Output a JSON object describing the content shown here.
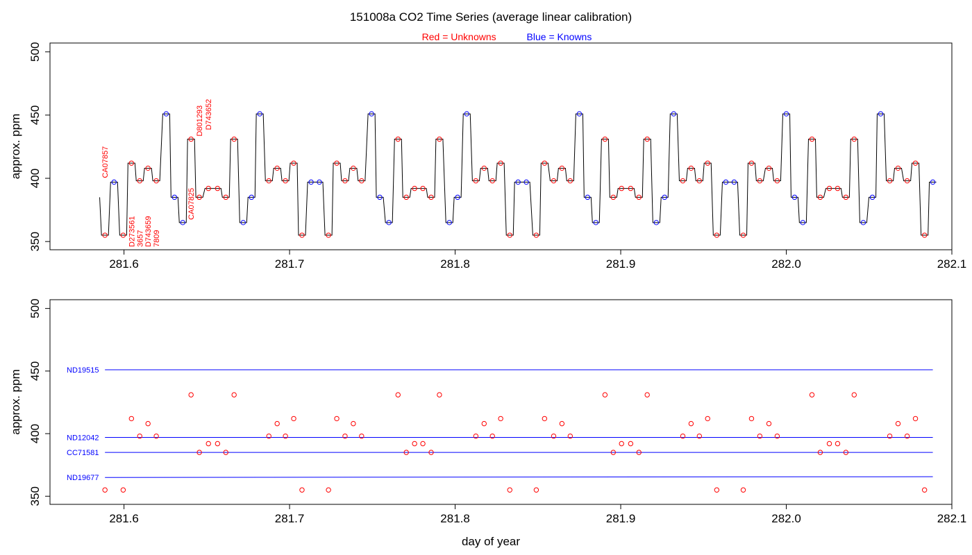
{
  "title": "151008a   CO2 Time Series (average linear calibration)",
  "legend": {
    "red_word": "Red",
    "red_rest": " = Unknowns",
    "blue_word": "Blue",
    "blue_rest": " = Knowns"
  },
  "colors": {
    "unknown": "#ff0000",
    "known": "#0000ff",
    "trace": "#000000",
    "frame": "#000000"
  },
  "xlabel": "day of year",
  "chart_data": [
    {
      "type": "line",
      "panel": "top",
      "ylabel": "approx. ppm",
      "xlim": [
        281.5553,
        282.1
      ],
      "ylim": [
        343.5,
        507
      ],
      "x_ticks": [
        "281.6",
        "281.7",
        "281.8",
        "281.9",
        "282.0",
        "282.1"
      ],
      "y_ticks": [
        "350",
        "400",
        "450",
        "500"
      ],
      "series": [
        {
          "name": "Unknowns",
          "color": "#ff0000",
          "points": [
            [
              281.5885,
              355
            ],
            [
              281.5995,
              355
            ],
            [
              281.6045,
              412
            ],
            [
              281.6095,
              398
            ],
            [
              281.6145,
              408
            ],
            [
              281.6195,
              398
            ],
            [
              281.6405,
              431
            ],
            [
              281.6455,
              385
            ],
            [
              281.651,
              392
            ],
            [
              281.6565,
              392
            ],
            [
              281.6615,
              385
            ],
            [
              281.6665,
              431
            ],
            [
              281.6875,
              398
            ],
            [
              281.6925,
              408
            ],
            [
              281.6975,
              398
            ],
            [
              281.7025,
              412
            ],
            [
              281.7075,
              355
            ],
            [
              281.7235,
              355
            ],
            [
              281.7285,
              412
            ],
            [
              281.7335,
              398
            ],
            [
              281.7385,
              408
            ],
            [
              281.7435,
              398
            ],
            [
              281.7655,
              431
            ],
            [
              281.7705,
              385
            ],
            [
              281.7755,
              392
            ],
            [
              281.7805,
              392
            ],
            [
              281.7855,
              385
            ],
            [
              281.7905,
              431
            ],
            [
              281.8125,
              398
            ],
            [
              281.8175,
              408
            ],
            [
              281.8225,
              398
            ],
            [
              281.8275,
              412
            ],
            [
              281.833,
              355
            ],
            [
              281.849,
              355
            ],
            [
              281.854,
              412
            ],
            [
              281.8595,
              398
            ],
            [
              281.8645,
              408
            ],
            [
              281.8695,
              398
            ],
            [
              281.8905,
              431
            ],
            [
              281.8955,
              385
            ],
            [
              281.9005,
              392
            ],
            [
              281.906,
              392
            ],
            [
              281.911,
              385
            ],
            [
              281.916,
              431
            ],
            [
              281.9375,
              398
            ],
            [
              281.9425,
              408
            ],
            [
              281.9475,
              398
            ],
            [
              281.9525,
              412
            ],
            [
              281.958,
              355
            ],
            [
              281.974,
              355
            ],
            [
              281.979,
              412
            ],
            [
              281.984,
              398
            ],
            [
              281.9895,
              408
            ],
            [
              281.9945,
              398
            ],
            [
              282.0155,
              431
            ],
            [
              282.0205,
              385
            ],
            [
              282.026,
              392
            ],
            [
              282.031,
              392
            ],
            [
              282.036,
              385
            ],
            [
              282.041,
              431
            ],
            [
              282.0625,
              398
            ],
            [
              282.0675,
              408
            ],
            [
              282.073,
              398
            ],
            [
              282.078,
              412
            ],
            [
              282.0835,
              355
            ]
          ]
        },
        {
          "name": "Knowns",
          "color": "#0000ff",
          "points": [
            [
              281.594,
              397
            ],
            [
              281.6255,
              451
            ],
            [
              281.6305,
              385
            ],
            [
              281.6355,
              365
            ],
            [
              281.672,
              365
            ],
            [
              281.677,
              385
            ],
            [
              281.682,
              451
            ],
            [
              281.713,
              397
            ],
            [
              281.718,
              397
            ],
            [
              281.7495,
              451
            ],
            [
              281.7545,
              385
            ],
            [
              281.76,
              365
            ],
            [
              281.7965,
              365
            ],
            [
              281.8015,
              385
            ],
            [
              281.807,
              451
            ],
            [
              281.838,
              397
            ],
            [
              281.843,
              397
            ],
            [
              281.875,
              451
            ],
            [
              281.88,
              385
            ],
            [
              281.885,
              365
            ],
            [
              281.9215,
              365
            ],
            [
              281.9265,
              385
            ],
            [
              281.932,
              451
            ],
            [
              281.9635,
              397
            ],
            [
              281.9685,
              397
            ],
            [
              282.0,
              451
            ],
            [
              282.005,
              385
            ],
            [
              282.01,
              365
            ],
            [
              282.0465,
              365
            ],
            [
              282.052,
              385
            ],
            [
              282.057,
              451
            ],
            [
              282.0885,
              397
            ]
          ]
        }
      ],
      "annotations": [
        {
          "text": "CA07857",
          "x": 281.5885,
          "y": 398,
          "anchor": "start",
          "color": "#ff0000"
        },
        {
          "text": "D273561",
          "x": 281.6045,
          "y": 343.5,
          "anchor": "start",
          "color": "#ff0000"
        },
        {
          "text": "3657",
          "x": 281.6095,
          "y": 343.5,
          "anchor": "start",
          "color": "#ff0000"
        },
        {
          "text": "D743659",
          "x": 281.6145,
          "y": 343.5,
          "anchor": "start",
          "color": "#ff0000"
        },
        {
          "text": "7809",
          "x": 281.6195,
          "y": 343.5,
          "anchor": "start",
          "color": "#ff0000"
        },
        {
          "text": "CA07825",
          "x": 281.6405,
          "y": 365,
          "anchor": "start",
          "color": "#ff0000"
        },
        {
          "text": "D801293",
          "x": 281.6455,
          "y": 431,
          "anchor": "start",
          "color": "#ff0000"
        },
        {
          "text": "D743652",
          "x": 281.651,
          "y": 436,
          "anchor": "start",
          "color": "#ff0000"
        }
      ]
    },
    {
      "type": "scatter",
      "panel": "bottom",
      "ylabel": "approx. ppm",
      "xlim": [
        281.5553,
        282.1
      ],
      "ylim": [
        343.5,
        507
      ],
      "x_ticks": [
        "281.6",
        "281.7",
        "281.8",
        "281.9",
        "282.0",
        "282.1"
      ],
      "y_ticks": [
        "350",
        "400",
        "450",
        "500"
      ],
      "reference_lines": [
        {
          "label": "ND19515",
          "y_start": 451,
          "y_end": 451,
          "x_start": 281.5885,
          "x_end": 282.0885,
          "color": "#0000ff"
        },
        {
          "label": "ND12042",
          "y_start": 397,
          "y_end": 397,
          "x_start": 281.5885,
          "x_end": 282.0885,
          "color": "#0000ff"
        },
        {
          "label": "CC71581",
          "y_start": 385,
          "y_end": 385,
          "x_start": 281.5885,
          "x_end": 282.0885,
          "color": "#0000ff"
        },
        {
          "label": "ND19677",
          "y_start": 365,
          "y_end": 365.6,
          "x_start": 281.5885,
          "x_end": 282.0885,
          "color": "#0000ff"
        }
      ],
      "series": [
        {
          "name": "Unknowns",
          "color": "#ff0000",
          "points": [
            [
              281.5885,
              355
            ],
            [
              281.5995,
              355
            ],
            [
              281.6045,
              412
            ],
            [
              281.6095,
              398
            ],
            [
              281.6145,
              408
            ],
            [
              281.6195,
              398
            ],
            [
              281.6405,
              431
            ],
            [
              281.6455,
              385
            ],
            [
              281.651,
              392
            ],
            [
              281.6565,
              392
            ],
            [
              281.6615,
              385
            ],
            [
              281.6665,
              431
            ],
            [
              281.6875,
              398
            ],
            [
              281.6925,
              408
            ],
            [
              281.6975,
              398
            ],
            [
              281.7025,
              412
            ],
            [
              281.7075,
              355
            ],
            [
              281.7235,
              355
            ],
            [
              281.7285,
              412
            ],
            [
              281.7335,
              398
            ],
            [
              281.7385,
              408
            ],
            [
              281.7435,
              398
            ],
            [
              281.7655,
              431
            ],
            [
              281.7705,
              385
            ],
            [
              281.7755,
              392
            ],
            [
              281.7805,
              392
            ],
            [
              281.7855,
              385
            ],
            [
              281.7905,
              431
            ],
            [
              281.8125,
              398
            ],
            [
              281.8175,
              408
            ],
            [
              281.8225,
              398
            ],
            [
              281.8275,
              412
            ],
            [
              281.833,
              355
            ],
            [
              281.849,
              355
            ],
            [
              281.854,
              412
            ],
            [
              281.8595,
              398
            ],
            [
              281.8645,
              408
            ],
            [
              281.8695,
              398
            ],
            [
              281.8905,
              431
            ],
            [
              281.8955,
              385
            ],
            [
              281.9005,
              392
            ],
            [
              281.906,
              392
            ],
            [
              281.911,
              385
            ],
            [
              281.916,
              431
            ],
            [
              281.9375,
              398
            ],
            [
              281.9425,
              408
            ],
            [
              281.9475,
              398
            ],
            [
              281.9525,
              412
            ],
            [
              281.958,
              355
            ],
            [
              281.974,
              355
            ],
            [
              281.979,
              412
            ],
            [
              281.984,
              398
            ],
            [
              281.9895,
              408
            ],
            [
              281.9945,
              398
            ],
            [
              282.0155,
              431
            ],
            [
              282.0205,
              385
            ],
            [
              282.026,
              392
            ],
            [
              282.031,
              392
            ],
            [
              282.036,
              385
            ],
            [
              282.041,
              431
            ],
            [
              282.0625,
              398
            ],
            [
              282.0675,
              408
            ],
            [
              282.073,
              398
            ],
            [
              282.078,
              412
            ],
            [
              282.0835,
              355
            ]
          ]
        }
      ]
    }
  ]
}
